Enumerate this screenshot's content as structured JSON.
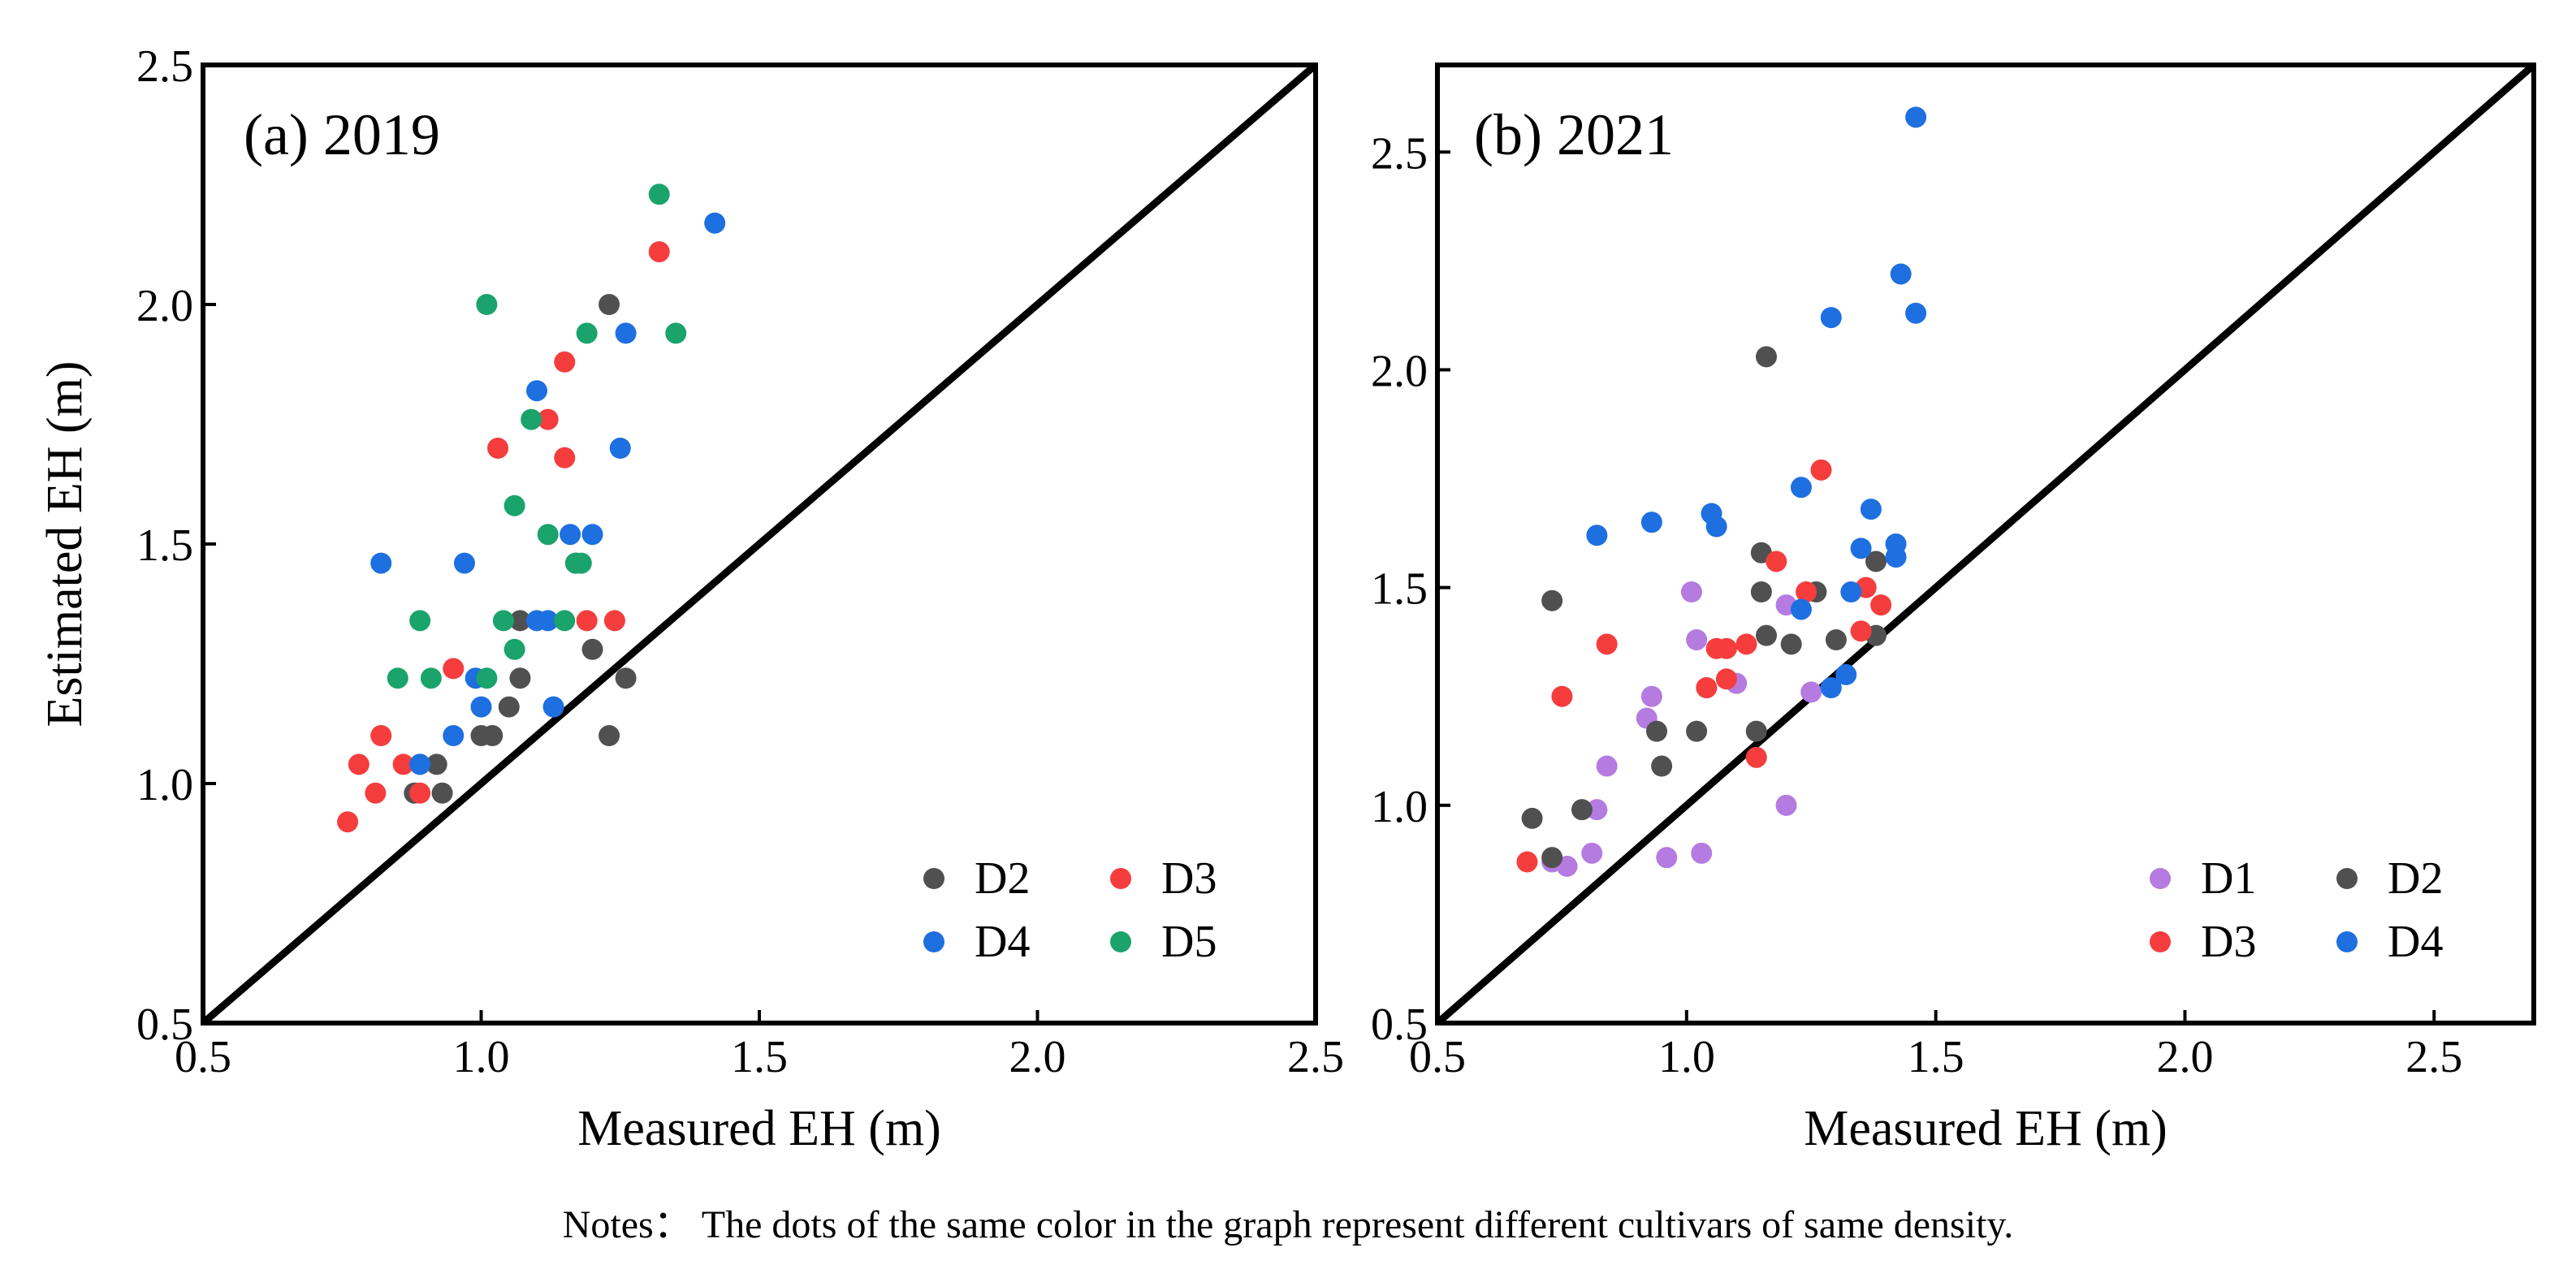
{
  "colors": {
    "D1": "#b57be0",
    "D2": "#505050",
    "D3": "#f53d3d",
    "D4": "#1e6fe0",
    "D5": "#1aa36b"
  },
  "note": "Notes： The dots of the same color in the graph represent different cultivars of same density.",
  "chart_data": [
    {
      "type": "scatter",
      "title": "(a) 2019",
      "xlabel": "Measured EH (m)",
      "ylabel": "Estimated EH (m)",
      "xlim": [
        0.5,
        2.5
      ],
      "ylim": [
        0.5,
        2.5
      ],
      "xticks": [
        "0.5",
        "1.0",
        "1.5",
        "2.0",
        "2.5"
      ],
      "yticks": [
        "0.5",
        "1.0",
        "1.5",
        "2.0",
        "2.5"
      ],
      "reference_line": "1:1",
      "series": [
        {
          "name": "D2",
          "color": "#505050",
          "points": [
            [
              1.23,
              2.0
            ],
            [
              1.26,
              1.22
            ],
            [
              1.23,
              1.1
            ],
            [
              1.2,
              1.28
            ],
            [
              1.17,
              1.46
            ],
            [
              1.07,
              1.34
            ],
            [
              1.07,
              1.22
            ],
            [
              1.05,
              1.16
            ],
            [
              1.02,
              1.1
            ],
            [
              1.0,
              1.1
            ],
            [
              0.92,
              1.04
            ],
            [
              0.93,
              0.98
            ],
            [
              0.89,
              1.04
            ],
            [
              0.88,
              0.98
            ]
          ]
        },
        {
          "name": "D3",
          "color": "#f53d3d",
          "points": [
            [
              1.32,
              2.11
            ],
            [
              1.15,
              1.88
            ],
            [
              1.12,
              1.76
            ],
            [
              1.03,
              1.7
            ],
            [
              1.15,
              1.68
            ],
            [
              1.19,
              1.34
            ],
            [
              1.24,
              1.34
            ],
            [
              0.95,
              1.24
            ],
            [
              0.82,
              1.1
            ],
            [
              0.78,
              1.04
            ],
            [
              0.86,
              1.04
            ],
            [
              0.81,
              0.98
            ],
            [
              0.89,
              0.98
            ],
            [
              0.76,
              0.92
            ]
          ]
        },
        {
          "name": "D4",
          "color": "#1e6fe0",
          "points": [
            [
              1.42,
              2.17
            ],
            [
              1.26,
              1.94
            ],
            [
              1.1,
              1.82
            ],
            [
              1.25,
              1.7
            ],
            [
              1.16,
              1.52
            ],
            [
              1.2,
              1.52
            ],
            [
              0.82,
              1.46
            ],
            [
              0.97,
              1.46
            ],
            [
              1.1,
              1.34
            ],
            [
              1.12,
              1.34
            ],
            [
              0.99,
              1.22
            ],
            [
              1.0,
              1.16
            ],
            [
              1.13,
              1.16
            ],
            [
              0.95,
              1.1
            ],
            [
              0.89,
              1.04
            ]
          ]
        },
        {
          "name": "D5",
          "color": "#1aa36b",
          "points": [
            [
              1.32,
              2.23
            ],
            [
              1.01,
              2.0
            ],
            [
              1.19,
              1.94
            ],
            [
              1.35,
              1.94
            ],
            [
              1.09,
              1.76
            ],
            [
              1.06,
              1.58
            ],
            [
              1.12,
              1.52
            ],
            [
              1.17,
              1.46
            ],
            [
              1.18,
              1.46
            ],
            [
              0.89,
              1.34
            ],
            [
              1.04,
              1.34
            ],
            [
              1.15,
              1.34
            ],
            [
              0.85,
              1.22
            ],
            [
              0.91,
              1.22
            ],
            [
              1.01,
              1.22
            ],
            [
              1.06,
              1.28
            ]
          ]
        }
      ],
      "legend": {
        "location": "bottom-right",
        "columns": 2,
        "entries": [
          "D2",
          "D3",
          "D4",
          "D5"
        ]
      }
    },
    {
      "type": "scatter",
      "title": "(b) 2021",
      "xlabel": "Measured EH (m)",
      "ylabel": "",
      "xlim": [
        0.5,
        2.7
      ],
      "ylim": [
        0.5,
        2.7
      ],
      "xticks": [
        "0.5",
        "1.0",
        "1.5",
        "2.0",
        "2.5"
      ],
      "yticks": [
        "0.5",
        "1.0",
        "1.5",
        "2.0",
        "2.5"
      ],
      "reference_line": "1:1",
      "series": [
        {
          "name": "D1",
          "color": "#b57be0",
          "points": [
            [
              1.01,
              1.49
            ],
            [
              1.02,
              1.38
            ],
            [
              1.2,
              1.46
            ],
            [
              0.93,
              1.25
            ],
            [
              0.92,
              1.2
            ],
            [
              1.04,
              1.27
            ],
            [
              1.1,
              1.28
            ],
            [
              0.84,
              1.09
            ],
            [
              0.82,
              0.99
            ],
            [
              0.81,
              0.89
            ],
            [
              0.96,
              0.88
            ],
            [
              1.03,
              0.89
            ],
            [
              0.73,
              0.87
            ],
            [
              0.76,
              0.86
            ],
            [
              1.2,
              1.0
            ],
            [
              1.25,
              1.26
            ]
          ]
        },
        {
          "name": "D2",
          "color": "#505050",
          "points": [
            [
              1.16,
              2.03
            ],
            [
              0.73,
              1.47
            ],
            [
              1.15,
              1.58
            ],
            [
              1.15,
              1.49
            ],
            [
              1.26,
              1.49
            ],
            [
              1.38,
              1.56
            ],
            [
              1.16,
              1.39
            ],
            [
              1.21,
              1.37
            ],
            [
              1.3,
              1.38
            ],
            [
              1.38,
              1.39
            ],
            [
              0.94,
              1.17
            ],
            [
              1.02,
              1.17
            ],
            [
              1.14,
              1.17
            ],
            [
              0.95,
              1.09
            ],
            [
              0.79,
              0.99
            ],
            [
              0.69,
              0.97
            ],
            [
              0.73,
              0.88
            ]
          ]
        },
        {
          "name": "D3",
          "color": "#f53d3d",
          "points": [
            [
              1.27,
              1.77
            ],
            [
              1.18,
              1.56
            ],
            [
              1.24,
              1.49
            ],
            [
              1.36,
              1.5
            ],
            [
              1.39,
              1.46
            ],
            [
              1.35,
              1.4
            ],
            [
              0.84,
              1.37
            ],
            [
              1.06,
              1.36
            ],
            [
              1.08,
              1.36
            ],
            [
              1.12,
              1.37
            ],
            [
              1.04,
              1.27
            ],
            [
              1.08,
              1.29
            ],
            [
              0.75,
              1.25
            ],
            [
              1.14,
              1.11
            ],
            [
              0.68,
              0.87
            ]
          ]
        },
        {
          "name": "D4",
          "color": "#1e6fe0",
          "points": [
            [
              1.46,
              2.58
            ],
            [
              1.43,
              2.22
            ],
            [
              1.29,
              2.12
            ],
            [
              1.46,
              2.13
            ],
            [
              1.23,
              1.73
            ],
            [
              1.05,
              1.67
            ],
            [
              1.37,
              1.68
            ],
            [
              0.82,
              1.62
            ],
            [
              0.93,
              1.65
            ],
            [
              1.06,
              1.64
            ],
            [
              1.35,
              1.59
            ],
            [
              1.42,
              1.6
            ],
            [
              1.42,
              1.57
            ],
            [
              1.33,
              1.49
            ],
            [
              1.23,
              1.45
            ],
            [
              1.32,
              1.3
            ],
            [
              1.29,
              1.27
            ]
          ]
        }
      ],
      "legend": {
        "location": "bottom-right",
        "columns": 2,
        "entries": [
          "D1",
          "D2",
          "D3",
          "D4"
        ]
      }
    }
  ]
}
